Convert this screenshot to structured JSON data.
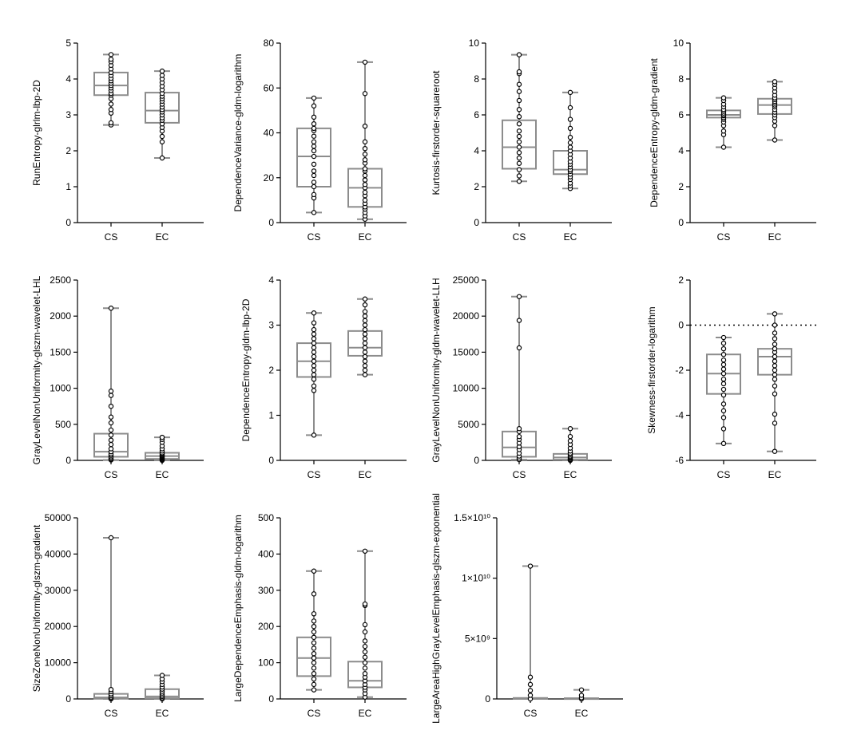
{
  "chart_data": [
    {
      "type": "box",
      "ylabel": "RunEntropy-glrlm-lbp-2D",
      "ylim": [
        0,
        5
      ],
      "yticks": [
        0,
        1,
        2,
        3,
        4,
        5
      ],
      "categories": [
        "CS",
        "EC"
      ],
      "groups": [
        {
          "name": "CS",
          "min": 2.72,
          "q1": 3.55,
          "median": 3.82,
          "q3": 4.18,
          "max": 4.68,
          "points": [
            2.72,
            2.78,
            3.05,
            3.15,
            3.3,
            3.45,
            3.55,
            3.6,
            3.68,
            3.75,
            3.82,
            3.88,
            3.95,
            4.02,
            4.1,
            4.18,
            4.28,
            4.38,
            4.48,
            4.55,
            4.68
          ]
        },
        {
          "name": "EC",
          "min": 1.8,
          "q1": 2.78,
          "median": 3.12,
          "q3": 3.62,
          "max": 4.22,
          "points": [
            1.8,
            2.25,
            2.4,
            2.55,
            2.65,
            2.75,
            2.85,
            2.92,
            3.0,
            3.08,
            3.15,
            3.22,
            3.3,
            3.38,
            3.45,
            3.52,
            3.6,
            3.7,
            3.8,
            3.9,
            4.0,
            4.1,
            4.22
          ]
        }
      ]
    },
    {
      "type": "box",
      "ylabel": "DependenceVariance-gldm-logarithm",
      "ylim": [
        0,
        80
      ],
      "yticks": [
        0,
        20,
        40,
        60,
        80
      ],
      "categories": [
        "CS",
        "EC"
      ],
      "groups": [
        {
          "name": "CS",
          "min": 4.5,
          "q1": 16,
          "median": 29.5,
          "q3": 42,
          "max": 55.5,
          "points": [
            4.5,
            11,
            12.5,
            16,
            18,
            21,
            23,
            26,
            29.5,
            32,
            34,
            36,
            38.5,
            41,
            42,
            44,
            47,
            52,
            55.5
          ]
        },
        {
          "name": "EC",
          "min": 1.5,
          "q1": 7,
          "median": 15.5,
          "q3": 24,
          "max": 71.5,
          "points": [
            1.5,
            3,
            4.5,
            6,
            7,
            8.5,
            10,
            12,
            13.5,
            15.5,
            17,
            19,
            21,
            23,
            24,
            26.5,
            28,
            30.5,
            33,
            36,
            43,
            57.5,
            71.5
          ]
        }
      ]
    },
    {
      "type": "box",
      "ylabel": "Kurtosis-firstorder-squareroot",
      "ylim": [
        0,
        10
      ],
      "yticks": [
        0,
        2,
        4,
        6,
        8,
        10
      ],
      "categories": [
        "CS",
        "EC"
      ],
      "groups": [
        {
          "name": "CS",
          "min": 2.3,
          "q1": 3.0,
          "median": 4.2,
          "q3": 5.7,
          "max": 9.35,
          "points": [
            2.3,
            2.6,
            2.95,
            3.3,
            3.6,
            3.9,
            4.2,
            4.5,
            4.8,
            5.1,
            5.5,
            5.9,
            6.3,
            6.8,
            7.3,
            7.7,
            8.3,
            8.4,
            9.35
          ]
        },
        {
          "name": "EC",
          "min": 1.9,
          "q1": 2.7,
          "median": 2.95,
          "q3": 4.0,
          "max": 7.25,
          "points": [
            1.9,
            2.05,
            2.2,
            2.4,
            2.55,
            2.7,
            2.85,
            2.95,
            3.1,
            3.25,
            3.4,
            3.6,
            3.8,
            4.0,
            4.2,
            4.45,
            4.75,
            5.25,
            5.75,
            6.4,
            7.25
          ]
        }
      ]
    },
    {
      "type": "box",
      "ylabel": "DependenceEntropy-gldm-gradient",
      "ylim": [
        0,
        10
      ],
      "yticks": [
        0,
        2,
        4,
        6,
        8,
        10
      ],
      "categories": [
        "CS",
        "EC"
      ],
      "groups": [
        {
          "name": "CS",
          "min": 4.2,
          "q1": 5.85,
          "median": 6.0,
          "q3": 6.25,
          "max": 6.95,
          "points": [
            4.2,
            4.9,
            5.1,
            5.4,
            5.6,
            5.75,
            5.85,
            5.95,
            6.0,
            6.1,
            6.2,
            6.3,
            6.45,
            6.6,
            6.8,
            6.95
          ]
        },
        {
          "name": "EC",
          "min": 4.6,
          "q1": 6.05,
          "median": 6.55,
          "q3": 6.9,
          "max": 7.85,
          "points": [
            4.6,
            5.4,
            5.65,
            5.85,
            6.0,
            6.15,
            6.3,
            6.45,
            6.55,
            6.65,
            6.75,
            6.85,
            6.95,
            7.1,
            7.3,
            7.5,
            7.7,
            7.85
          ]
        }
      ]
    },
    {
      "type": "box",
      "ylabel": "GrayLevelNonUniformity-glszm-wavelet-LHL",
      "ylim": [
        0,
        2500
      ],
      "yticks": [
        0,
        500,
        1000,
        1500,
        2000,
        2500
      ],
      "categories": [
        "CS",
        "EC"
      ],
      "groups": [
        {
          "name": "CS",
          "min": 5,
          "q1": 50,
          "median": 120,
          "q3": 370,
          "max": 2110,
          "points": [
            5,
            15,
            30,
            50,
            70,
            90,
            120,
            160,
            220,
            280,
            350,
            420,
            520,
            600,
            750,
            900,
            960,
            2110
          ]
        },
        {
          "name": "EC",
          "min": 0,
          "q1": 20,
          "median": 60,
          "q3": 105,
          "max": 320,
          "points": [
            0,
            5,
            12,
            20,
            30,
            40,
            50,
            60,
            70,
            80,
            95,
            105,
            130,
            160,
            200,
            250,
            290,
            320
          ]
        }
      ]
    },
    {
      "type": "box",
      "ylabel": "DependenceEntropy-gldm-lbp-2D",
      "ylim": [
        0,
        4
      ],
      "yticks": [
        0,
        1,
        2,
        3,
        4
      ],
      "categories": [
        "CS",
        "EC"
      ],
      "groups": [
        {
          "name": "CS",
          "min": 0.56,
          "q1": 1.85,
          "median": 2.2,
          "q3": 2.6,
          "max": 3.27,
          "points": [
            0.56,
            1.55,
            1.65,
            1.8,
            1.9,
            2.0,
            2.1,
            2.2,
            2.3,
            2.4,
            2.5,
            2.6,
            2.7,
            2.8,
            2.9,
            3.05,
            3.27
          ]
        },
        {
          "name": "EC",
          "min": 1.9,
          "q1": 2.32,
          "median": 2.5,
          "q3": 2.87,
          "max": 3.58,
          "points": [
            1.9,
            2.0,
            2.1,
            2.2,
            2.3,
            2.4,
            2.5,
            2.6,
            2.7,
            2.8,
            2.9,
            3.0,
            3.1,
            3.2,
            3.3,
            3.45,
            3.58
          ]
        }
      ]
    },
    {
      "type": "box",
      "ylabel": "GrayLevelNonUniformity-gldm-wavelet-LLH",
      "ylim": [
        0,
        25000
      ],
      "yticks": [
        0,
        5000,
        10000,
        15000,
        20000,
        25000
      ],
      "categories": [
        "CS",
        "EC"
      ],
      "groups": [
        {
          "name": "CS",
          "min": 100,
          "q1": 500,
          "median": 1800,
          "q3": 4000,
          "max": 22700,
          "points": [
            100,
            300,
            600,
            1000,
            1500,
            1900,
            2400,
            2900,
            3300,
            4000,
            4400,
            15600,
            19400,
            22700
          ]
        },
        {
          "name": "EC",
          "min": 0,
          "q1": 100,
          "median": 400,
          "q3": 900,
          "max": 4400,
          "points": [
            0,
            50,
            150,
            300,
            450,
            600,
            800,
            1000,
            1300,
            1700,
            2200,
            2700,
            3300,
            4400
          ]
        }
      ]
    },
    {
      "type": "box",
      "ylabel": "Skewness-firstorder-logarithm",
      "ylim": [
        -6,
        2
      ],
      "yticks": [
        -6,
        -4,
        -2,
        0,
        2
      ],
      "reference_line": 0,
      "categories": [
        "CS",
        "EC"
      ],
      "groups": [
        {
          "name": "CS",
          "min": -5.25,
          "q1": -3.05,
          "median": -2.15,
          "q3": -1.3,
          "max": -0.55,
          "points": [
            -5.25,
            -4.6,
            -4.1,
            -3.8,
            -3.5,
            -3.1,
            -2.85,
            -2.6,
            -2.4,
            -2.15,
            -1.95,
            -1.75,
            -1.55,
            -1.3,
            -1.05,
            -0.8,
            -0.55
          ]
        },
        {
          "name": "EC",
          "min": -5.6,
          "q1": -2.2,
          "median": -1.4,
          "q3": -1.05,
          "max": 0.5,
          "points": [
            -5.6,
            -4.35,
            -3.95,
            -3.05,
            -2.7,
            -2.4,
            -2.2,
            -2.0,
            -1.8,
            -1.6,
            -1.4,
            -1.2,
            -1.05,
            -0.85,
            -0.6,
            -0.35,
            0.0,
            0.5
          ]
        }
      ]
    },
    {
      "type": "box",
      "ylabel": "SizeZoneNonUniformity-glszm-gradient",
      "ylim": [
        0,
        50000
      ],
      "yticks": [
        0,
        10000,
        20000,
        30000,
        40000,
        50000
      ],
      "categories": [
        "CS",
        "EC"
      ],
      "groups": [
        {
          "name": "CS",
          "min": 0,
          "q1": 100,
          "median": 400,
          "q3": 1400,
          "max": 44500,
          "points": [
            0,
            200,
            500,
            900,
            1400,
            2000,
            2600,
            44500
          ]
        },
        {
          "name": "EC",
          "min": 0,
          "q1": 200,
          "median": 700,
          "q3": 2700,
          "max": 6500,
          "points": [
            0,
            300,
            700,
            1100,
            1600,
            2100,
            2700,
            3300,
            4000,
            4800,
            5500,
            6500
          ]
        }
      ]
    },
    {
      "type": "box",
      "ylabel": "LargeDependenceEmphasis-gldm-logarithm",
      "ylim": [
        0,
        500
      ],
      "yticks": [
        0,
        100,
        200,
        300,
        400,
        500
      ],
      "categories": [
        "CS",
        "EC"
      ],
      "groups": [
        {
          "name": "CS",
          "min": 25,
          "q1": 63,
          "median": 113,
          "q3": 170,
          "max": 353,
          "points": [
            25,
            40,
            55,
            70,
            85,
            100,
            113,
            125,
            140,
            155,
            170,
            185,
            200,
            215,
            235,
            290,
            353
          ]
        },
        {
          "name": "EC",
          "min": 5,
          "q1": 32,
          "median": 50,
          "q3": 103,
          "max": 408,
          "points": [
            5,
            15,
            25,
            32,
            40,
            50,
            60,
            70,
            85,
            100,
            115,
            130,
            145,
            160,
            185,
            205,
            258,
            262,
            408
          ]
        }
      ]
    },
    {
      "type": "box",
      "ylabel": "LargeAreaHighGrayLevelEmphasis-glszm-exponential",
      "ylim": [
        0,
        15000000000
      ],
      "yticks": [
        0,
        5000000000,
        10000000000,
        15000000000
      ],
      "ytick_labels": [
        "0",
        "5×10⁹",
        "1×10¹⁰",
        "1.5×10¹⁰"
      ],
      "categories": [
        "CS",
        "EC"
      ],
      "groups": [
        {
          "name": "CS",
          "min": 0,
          "q1": 5000000,
          "median": 20000000,
          "q3": 80000000,
          "max": 11000000000,
          "points": [
            0,
            300000000,
            700000000,
            1200000000,
            1800000000,
            11000000000
          ]
        },
        {
          "name": "EC",
          "min": 0,
          "q1": 5000000,
          "median": 15000000,
          "q3": 60000000,
          "max": 750000000,
          "points": [
            0,
            100000000,
            300000000,
            750000000
          ]
        }
      ]
    }
  ]
}
